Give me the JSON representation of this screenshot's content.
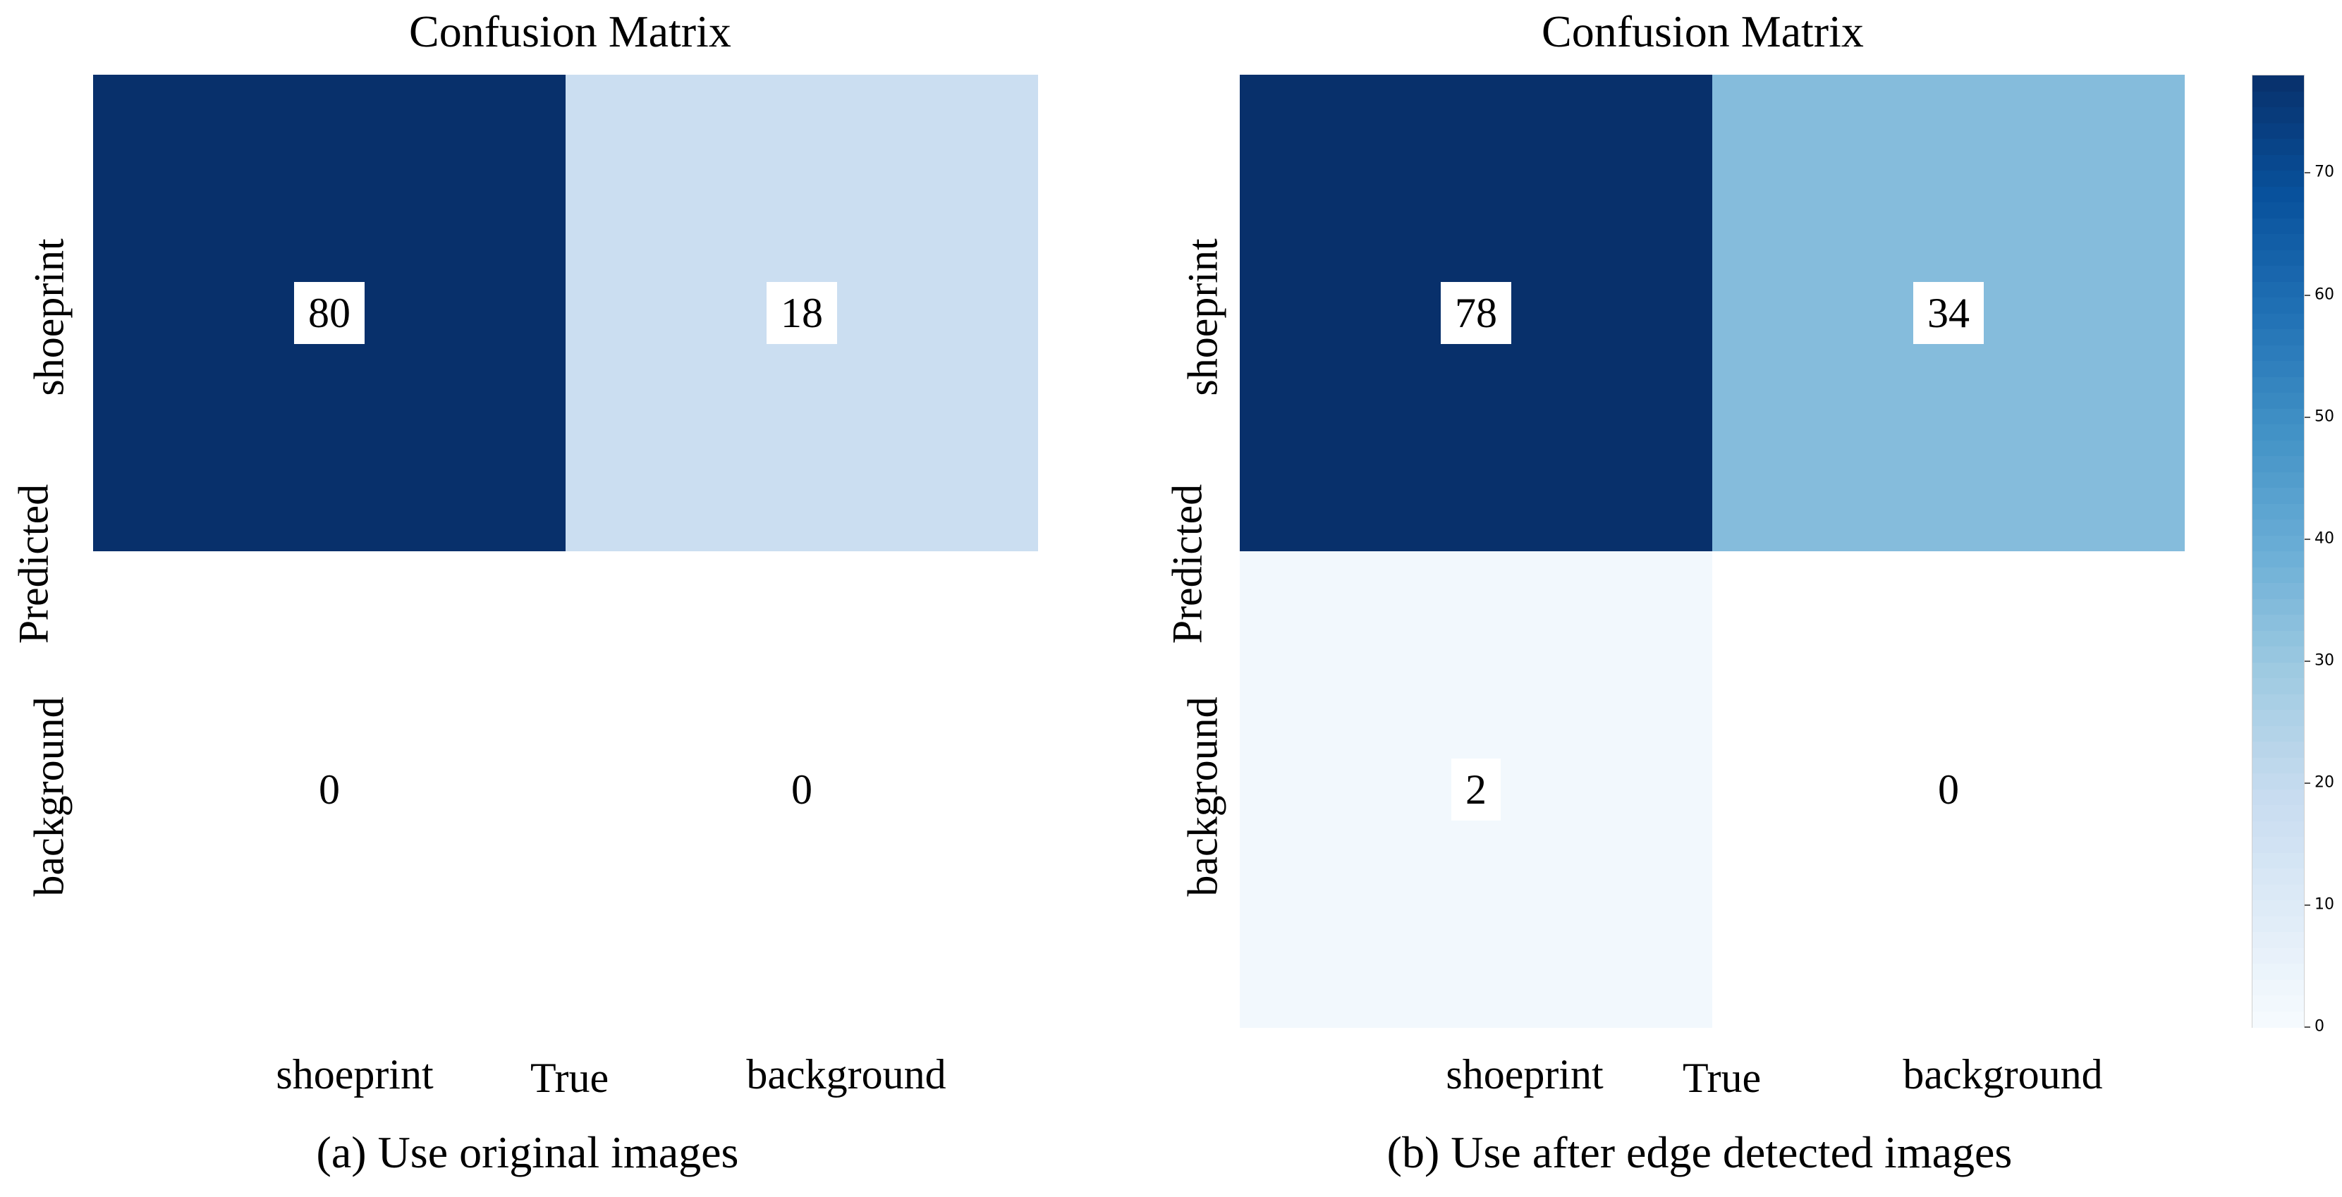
{
  "chart_data": [
    {
      "type": "heatmap",
      "title": "Confusion Matrix",
      "xlabel": "True",
      "ylabel": "Predicted",
      "x_categories": [
        "shoeprint",
        "background"
      ],
      "y_categories": [
        "shoeprint",
        "background"
      ],
      "values": [
        [
          80,
          18
        ],
        [
          0,
          0
        ]
      ],
      "caption": "(a) Use original images"
    },
    {
      "type": "heatmap",
      "title": "Confusion Matrix",
      "xlabel": "True",
      "ylabel": "Predicted",
      "x_categories": [
        "shoeprint",
        "background"
      ],
      "y_categories": [
        "shoeprint",
        "background"
      ],
      "values": [
        [
          78,
          34
        ],
        [
          2,
          0
        ]
      ],
      "caption": "(b) Use after edge detected images",
      "colorbar": {
        "min": 0,
        "max": 78,
        "ticks": [
          0,
          10,
          20,
          30,
          40,
          50,
          60,
          70
        ],
        "colormap": "Blues"
      }
    }
  ]
}
